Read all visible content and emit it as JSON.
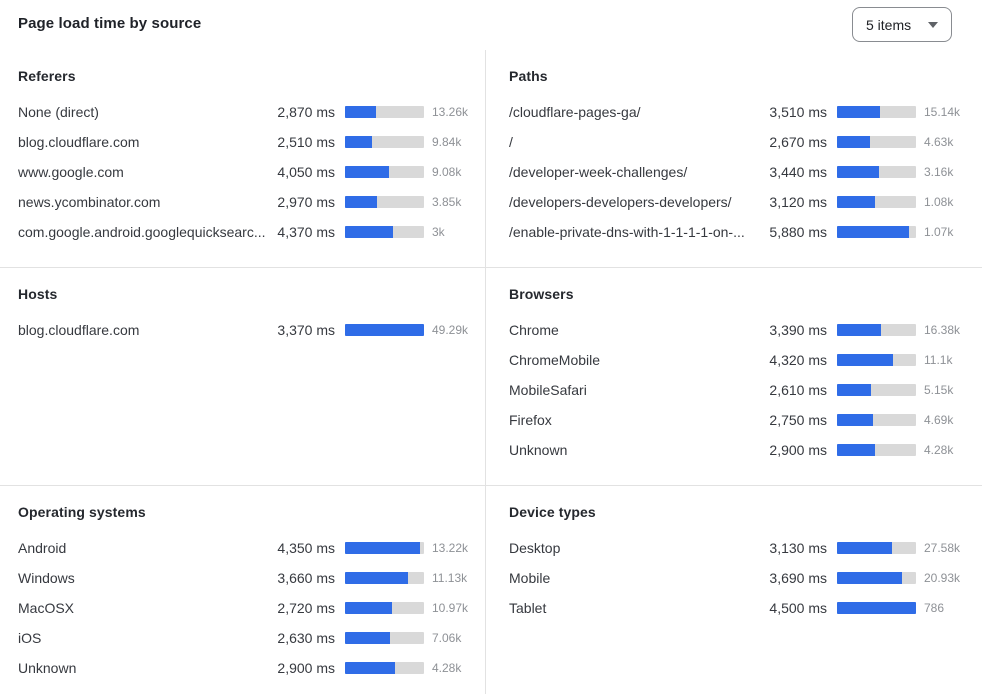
{
  "header": {
    "title": "Page load time by source",
    "items_selector": {
      "label": "5 items"
    }
  },
  "colors": {
    "bar_fill": "#2f6ce7",
    "bar_track": "#d9d9d9",
    "divider": "#e2e2e2"
  },
  "chart_data": [
    {
      "type": "bar",
      "title": "Referers",
      "bar_scale_ms": 7250,
      "rows": [
        {
          "label": "None (direct)",
          "ms": 2870,
          "value": "2,870 ms",
          "count": "13.26k"
        },
        {
          "label": "blog.cloudflare.com",
          "ms": 2510,
          "value": "2,510 ms",
          "count": "9.84k"
        },
        {
          "label": "www.google.com",
          "ms": 4050,
          "value": "4,050 ms",
          "count": "9.08k"
        },
        {
          "label": "news.ycombinator.com",
          "ms": 2970,
          "value": "2,970 ms",
          "count": "3.85k"
        },
        {
          "label": "com.google.android.googlequicksearc...",
          "ms": 4370,
          "value": "4,370 ms",
          "count": "3k"
        }
      ]
    },
    {
      "type": "bar",
      "title": "Paths",
      "bar_scale_ms": 6450,
      "rows": [
        {
          "label": "/cloudflare-pages-ga/",
          "ms": 3510,
          "value": "3,510 ms",
          "count": "15.14k"
        },
        {
          "label": "/",
          "ms": 2670,
          "value": "2,670 ms",
          "count": "4.63k"
        },
        {
          "label": "/developer-week-challenges/",
          "ms": 3440,
          "value": "3,440 ms",
          "count": "3.16k"
        },
        {
          "label": "/developers-developers-developers/",
          "ms": 3120,
          "value": "3,120 ms",
          "count": "1.08k"
        },
        {
          "label": "/enable-private-dns-with-1-1-1-1-on-...",
          "ms": 5880,
          "value": "5,880 ms",
          "count": "1.07k"
        }
      ]
    },
    {
      "type": "bar",
      "title": "Hosts",
      "bar_scale_ms": 3370,
      "rows": [
        {
          "label": "blog.cloudflare.com",
          "ms": 3370,
          "value": "3,370 ms",
          "count": "49.29k"
        }
      ]
    },
    {
      "type": "bar",
      "title": "Browsers",
      "bar_scale_ms": 6100,
      "rows": [
        {
          "label": "Chrome",
          "ms": 3390,
          "value": "3,390 ms",
          "count": "16.38k"
        },
        {
          "label": "ChromeMobile",
          "ms": 4320,
          "value": "4,320 ms",
          "count": "11.1k"
        },
        {
          "label": "MobileSafari",
          "ms": 2610,
          "value": "2,610 ms",
          "count": "5.15k"
        },
        {
          "label": "Firefox",
          "ms": 2750,
          "value": "2,750 ms",
          "count": "4.69k"
        },
        {
          "label": "Unknown",
          "ms": 2900,
          "value": "2,900 ms",
          "count": "4.28k"
        }
      ]
    },
    {
      "type": "bar",
      "title": "Operating systems",
      "bar_scale_ms": 4600,
      "rows": [
        {
          "label": "Android",
          "ms": 4350,
          "value": "4,350 ms",
          "count": "13.22k"
        },
        {
          "label": "Windows",
          "ms": 3660,
          "value": "3,660 ms",
          "count": "11.13k"
        },
        {
          "label": "MacOSX",
          "ms": 2720,
          "value": "2,720 ms",
          "count": "10.97k"
        },
        {
          "label": "iOS",
          "ms": 2630,
          "value": "2,630 ms",
          "count": "7.06k"
        },
        {
          "label": "Unknown",
          "ms": 2900,
          "value": "2,900 ms",
          "count": "4.28k"
        }
      ]
    },
    {
      "type": "bar",
      "title": "Device types",
      "bar_scale_ms": 4500,
      "rows": [
        {
          "label": "Desktop",
          "ms": 3130,
          "value": "3,130 ms",
          "count": "27.58k"
        },
        {
          "label": "Mobile",
          "ms": 3690,
          "value": "3,690 ms",
          "count": "20.93k"
        },
        {
          "label": "Tablet",
          "ms": 4500,
          "value": "4,500 ms",
          "count": "786"
        }
      ]
    }
  ]
}
